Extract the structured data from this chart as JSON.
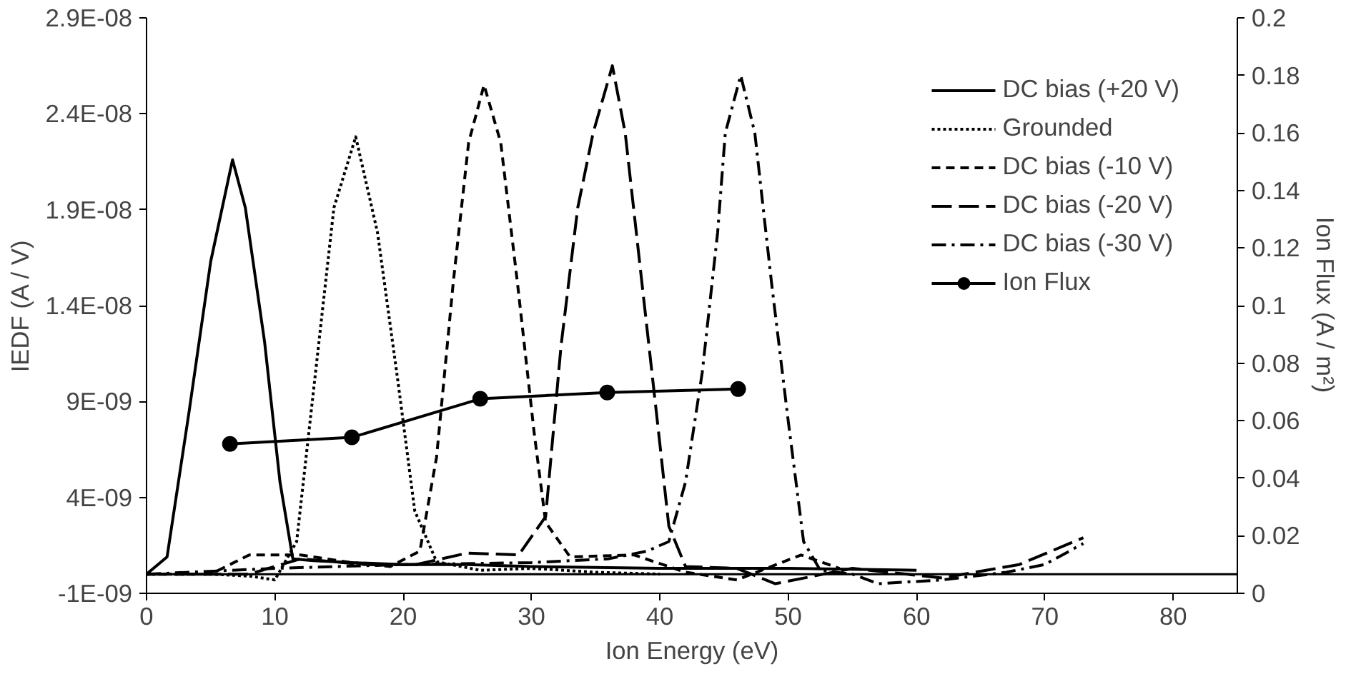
{
  "chart_data": {
    "type": "line",
    "xlabel": "Ion Energy (eV)",
    "ylabel": "IEDF (A / V)",
    "y2label": "Ion Flux (A / m²)",
    "xlim": [
      0,
      85
    ],
    "xticks": [
      0,
      10,
      20,
      30,
      40,
      50,
      60,
      70,
      80
    ],
    "ylim": [
      -1e-09,
      2.9e-08
    ],
    "yticks": [
      {
        "value": -1e-09,
        "label": "-1E-09"
      },
      {
        "value": 4e-09,
        "label": "4E-09"
      },
      {
        "value": 9e-09,
        "label": "9E-09"
      },
      {
        "value": 1.4e-08,
        "label": "1.4E-08"
      },
      {
        "value": 1.9e-08,
        "label": "1.9E-08"
      },
      {
        "value": 2.4e-08,
        "label": "2.4E-08"
      },
      {
        "value": 2.9e-08,
        "label": "2.9E-08"
      }
    ],
    "y2lim": [
      0,
      0.2
    ],
    "y2ticks": [
      0,
      0.02,
      0.04,
      0.06,
      0.08,
      0.1,
      0.12,
      0.14,
      0.16,
      0.18,
      0.2
    ],
    "grid": false,
    "legend": "top right",
    "marker": "none",
    "ref_lines": [
      {
        "axis": "y",
        "value": 0,
        "label": null
      }
    ],
    "series": [
      {
        "name": "DC bias (+20 V)",
        "color": "#000000",
        "line_style": "solid",
        "x": [
          0,
          1.6,
          3.3,
          5,
          6.7,
          7.7,
          9.2,
          10.4,
          11.4,
          13,
          16,
          20,
          25,
          30,
          40,
          50,
          60
        ],
        "values": [
          0,
          9e-10,
          8.4e-09,
          1.63e-08,
          2.16e-08,
          1.91e-08,
          1.21e-08,
          4.8e-09,
          8e-10,
          7e-10,
          6e-10,
          5e-10,
          5e-10,
          4e-10,
          3e-10,
          3e-10,
          2e-10
        ]
      },
      {
        "name": "Grounded",
        "color": "#000000",
        "line_style": "dotted",
        "x": [
          0,
          5,
          8,
          10,
          11.7,
          13.3,
          14.6,
          16.3,
          18,
          19.6,
          20.9,
          22.6,
          26,
          30,
          35,
          40
        ],
        "values": [
          0,
          0,
          -1e-10,
          -3e-10,
          1.7e-09,
          1.13e-08,
          1.91e-08,
          2.28e-08,
          1.78e-08,
          1e-08,
          3.3e-09,
          6.5e-10,
          2e-10,
          3e-10,
          1e-10,
          0
        ]
      },
      {
        "name": "DC bias (-10 V)",
        "color": "#000000",
        "line_style": "dashed",
        "x": [
          0,
          5,
          8,
          12,
          16,
          19,
          21.3,
          22.6,
          23.9,
          25.1,
          26.3,
          27.6,
          28.9,
          30.2,
          31.1,
          33,
          38,
          42,
          46,
          51,
          54
        ],
        "values": [
          0,
          0,
          1e-09,
          1e-09,
          6e-10,
          4e-10,
          1.2e-09,
          6.1e-09,
          1.52e-08,
          2.25e-08,
          2.55e-08,
          2.25e-08,
          1.52e-08,
          7.4e-09,
          2.7e-09,
          9e-10,
          1e-09,
          1e-10,
          -3e-10,
          1e-09,
          3e-10
        ]
      },
      {
        "name": "DC bias (-20 V)",
        "color": "#000000",
        "line_style": "longdash",
        "x": [
          0,
          8,
          12,
          17,
          21,
          25,
          29,
          31.1,
          32.3,
          33.6,
          34.8,
          36.3,
          37.3,
          38.6,
          39.9,
          40.7,
          42,
          46,
          49,
          55,
          62,
          68,
          73
        ],
        "values": [
          0,
          0,
          8e-10,
          5e-10,
          5e-10,
          1.1e-09,
          1e-09,
          3e-09,
          1.19e-08,
          1.91e-08,
          2.3e-08,
          2.65e-08,
          2.3e-08,
          1.52e-08,
          7.4e-09,
          2.5e-09,
          4e-10,
          3e-10,
          -5e-10,
          3e-10,
          -2e-10,
          5e-10,
          1.9e-09
        ]
      },
      {
        "name": "DC bias (-30 V)",
        "color": "#000000",
        "line_style": "dashdot",
        "x": [
          0,
          10,
          20,
          30,
          36,
          39,
          40.7,
          42,
          43.3,
          44.5,
          45.1,
          46.3,
          47.4,
          48.7,
          50,
          51.2,
          52.5,
          55,
          57,
          62,
          67,
          70,
          73
        ],
        "values": [
          0,
          3e-10,
          5e-10,
          6e-10,
          8e-10,
          1.2e-09,
          1.7e-09,
          4.8e-09,
          1.05e-08,
          1.78e-08,
          2.3e-08,
          2.6e-08,
          2.3e-08,
          1.52e-08,
          8e-09,
          1.7e-09,
          2e-10,
          0,
          -5e-10,
          -3e-10,
          1e-10,
          5e-10,
          1.6e-09
        ]
      },
      {
        "name": "Ion Flux",
        "color": "#000000",
        "line_style": "solid",
        "marker": "circle",
        "axis": "y2",
        "x": [
          6.5,
          16.0,
          26.0,
          35.9,
          46.1
        ],
        "values": [
          0.0519,
          0.0542,
          0.0676,
          0.0698,
          0.071
        ]
      }
    ]
  }
}
